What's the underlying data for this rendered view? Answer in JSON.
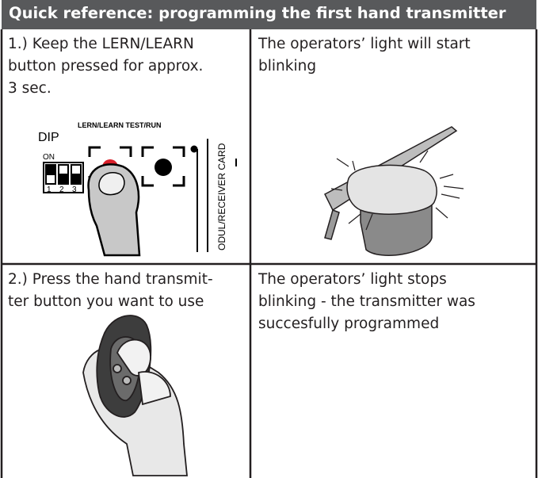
{
  "header": {
    "title": "Quick reference: programming the first hand transmitter"
  },
  "rows": [
    {
      "instruction": [
        "1.) Keep the LERN/LEARN",
        "button pressed for approx.",
        "3 sec."
      ],
      "result": [
        "The operators’ light will start",
        "blinking"
      ],
      "illustration": {
        "labels": {
          "dip": "DIP",
          "buttons": "LERN/LEARN TEST/RUN",
          "on": "ON",
          "switch_numbers": [
            "1",
            "2",
            "3"
          ],
          "card": "ODUL/RECEIVER CARD"
        }
      }
    },
    {
      "instruction": [
        "2.) Press the hand transmit-",
        "ter button you want to use"
      ],
      "result": [
        "The operators’ light stops",
        "blinking - the transmitter was",
        "succesfully programmed"
      ]
    }
  ]
}
